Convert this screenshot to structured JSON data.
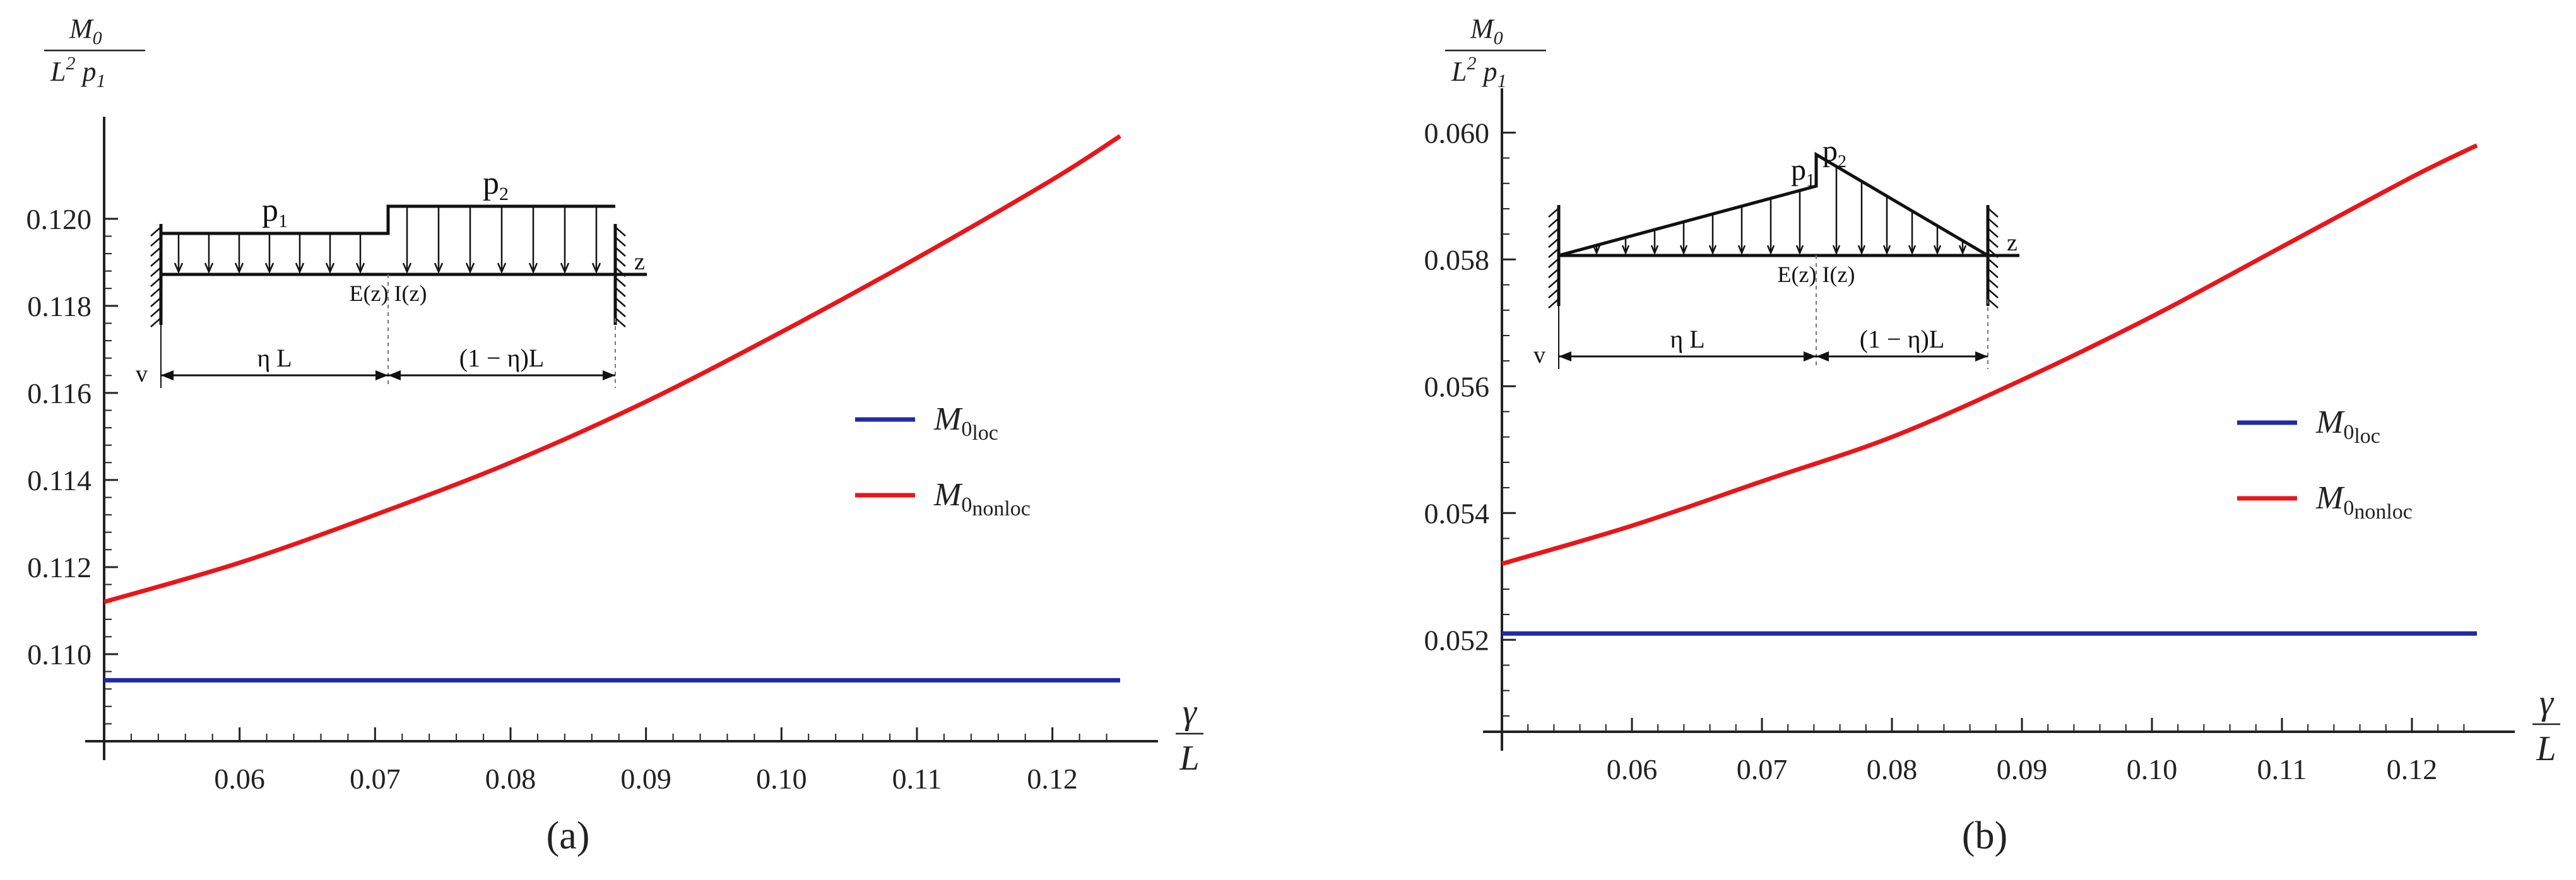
{
  "colors": {
    "local": "#1f2aa8",
    "nonlocal": "#e8161b",
    "axis": "#222222"
  },
  "chart_data": [
    {
      "type": "line",
      "panel_label": "(a)",
      "ylabel": {
        "numerator": "M",
        "numerator_sub": "0",
        "denominator": "L",
        "denominator_sup": "2",
        "denominator_p": "p",
        "denominator_sub": "1"
      },
      "xlabel": {
        "numerator": "γ",
        "denominator": "L"
      },
      "xlim": [
        0.05,
        0.125
      ],
      "ylim": [
        0.108,
        0.1222
      ],
      "x_ticks": [
        "0.06",
        "0.07",
        "0.08",
        "0.09",
        "0.10",
        "0.11",
        "0.12"
      ],
      "x_tick_values": [
        0.06,
        0.07,
        0.08,
        0.09,
        0.1,
        0.11,
        0.12
      ],
      "y_ticks": [
        "0.110",
        "0.112",
        "0.114",
        "0.116",
        "0.118",
        "0.120"
      ],
      "y_tick_values": [
        0.11,
        0.112,
        0.114,
        0.116,
        0.118,
        0.12
      ],
      "series": [
        {
          "name": "M0loc",
          "label_main": "M",
          "label_sub": "0",
          "label_subsub": "loc",
          "color": "#1f2aa8",
          "x": [
            0.05,
            0.125
          ],
          "y": [
            0.1094,
            0.1094
          ]
        },
        {
          "name": "M0nonloc",
          "label_main": "M",
          "label_sub": "0",
          "label_subsub": "nonloc",
          "color": "#e8161b",
          "x": [
            0.05,
            0.06,
            0.07,
            0.08,
            0.09,
            0.1,
            0.11,
            0.12,
            0.125
          ],
          "y": [
            0.1112,
            0.1121,
            0.1132,
            0.1144,
            0.1158,
            0.1174,
            0.1191,
            0.1209,
            0.1219
          ]
        }
      ],
      "inset": {
        "load_labels": [
          "p",
          "1",
          "p",
          "2"
        ],
        "beam_label": "E(z) I(z)",
        "axis_z": "z",
        "axis_v": "v",
        "dim_left": "η L",
        "dim_right": "(1 − η)L"
      }
    },
    {
      "type": "line",
      "panel_label": "(b)",
      "ylabel": {
        "numerator": "M",
        "numerator_sub": "0",
        "denominator": "L",
        "denominator_sup": "2",
        "denominator_p": "p",
        "denominator_sub": "1"
      },
      "xlabel": {
        "numerator": "γ",
        "denominator": "L"
      },
      "xlim": [
        0.05,
        0.125
      ],
      "ylim": [
        0.0506,
        0.0606
      ],
      "x_ticks": [
        "0.06",
        "0.07",
        "0.08",
        "0.09",
        "0.10",
        "0.11",
        "0.12"
      ],
      "x_tick_values": [
        0.06,
        0.07,
        0.08,
        0.09,
        0.1,
        0.11,
        0.12
      ],
      "y_ticks": [
        "0.052",
        "0.054",
        "0.056",
        "0.058",
        "0.060"
      ],
      "y_tick_values": [
        0.052,
        0.054,
        0.056,
        0.058,
        0.06
      ],
      "series": [
        {
          "name": "M0loc",
          "label_main": "M",
          "label_sub": "0",
          "label_subsub": "loc",
          "color": "#1f2aa8",
          "x": [
            0.05,
            0.125
          ],
          "y": [
            0.0521,
            0.0521
          ]
        },
        {
          "name": "M0nonloc",
          "label_main": "M",
          "label_sub": "0",
          "label_subsub": "nonloc",
          "color": "#e8161b",
          "x": [
            0.05,
            0.06,
            0.07,
            0.08,
            0.09,
            0.1,
            0.11,
            0.12,
            0.125
          ],
          "y": [
            0.0532,
            0.0538,
            0.0545,
            0.0552,
            0.0561,
            0.0571,
            0.0582,
            0.0593,
            0.0598
          ]
        }
      ],
      "inset": {
        "load_labels": [
          "p",
          "1",
          "p",
          "2"
        ],
        "beam_label": "E(z) I(z)",
        "axis_z": "z",
        "axis_v": "v",
        "dim_left": "η L",
        "dim_right": "(1 − η)L"
      }
    }
  ]
}
